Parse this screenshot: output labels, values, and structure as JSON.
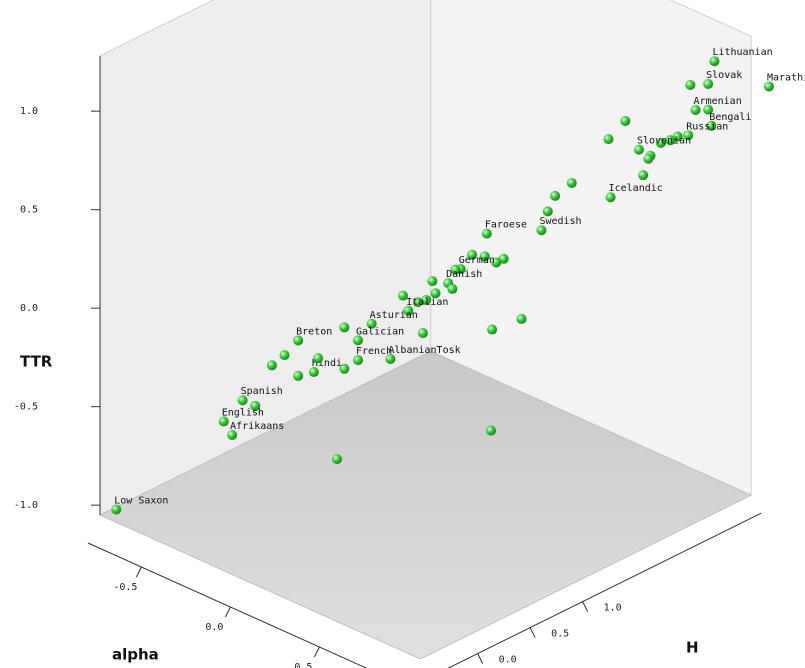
{
  "chart_data": {
    "type": "scatter3d",
    "xlabel": "alpha",
    "ylabel": "H",
    "zlabel": "TTR",
    "color": "#33cc33",
    "xlim": [
      -0.8,
      1.0
    ],
    "ylim": [
      -0.45,
      2.7
    ],
    "zlim": [
      -1.05,
      1.28
    ],
    "xticks": [
      -0.5,
      {
        "value": 0,
        "label": "0.0"
      },
      0.5
    ],
    "yticks": [
      {
        "value": 0,
        "label": "0.0"
      },
      0.5,
      {
        "value": 1,
        "label": "1.0"
      }
    ],
    "zticks": [
      {
        "value": -1,
        "label": "-1.0"
      },
      -0.5,
      {
        "value": 0,
        "label": "0.0"
      },
      0.5,
      {
        "value": 1,
        "label": "1.0"
      }
    ],
    "labels": [
      "Lithuanian",
      "Slovak",
      "Marathi",
      null,
      "Armenian",
      null,
      "Bengali",
      "Russian",
      null,
      null,
      null,
      "Slovenian",
      null,
      null,
      null,
      null,
      null,
      "Icelandic",
      null,
      null,
      null,
      "Swedish",
      "Faroese",
      null,
      null,
      null,
      null,
      null,
      null,
      null,
      "German",
      null,
      "Danish",
      null,
      null,
      null,
      null,
      null,
      "Italian",
      null,
      null,
      "AlbanianTosk",
      "Asturian",
      null,
      "Galician",
      "French",
      null,
      "Hindi",
      null,
      "Breton",
      null,
      null,
      null,
      null,
      "Spanish",
      null,
      "English",
      "Afrikaans",
      "Low Saxon"
    ],
    "x": [
      0.9,
      0.9,
      1.0,
      0.9,
      0.9,
      0.9,
      0.9,
      0.9,
      0.9,
      0.9,
      0.9,
      0.7,
      0.7,
      0.7,
      0.7,
      0.7,
      0.7,
      0.7,
      0.7,
      0.4,
      0.4,
      0.4,
      0.4,
      0.4,
      0.4,
      0.4,
      0.4,
      0.4,
      0.4,
      0.4,
      0.1,
      0.1,
      0.1,
      0.1,
      0.1,
      0.1,
      0.1,
      0.1,
      0.1,
      0.1,
      0.1,
      0.1,
      -0.2,
      -0.2,
      -0.2,
      -0.2,
      -0.2,
      -0.2,
      -0.2,
      -0.2,
      -0.2,
      -0.2,
      -0.2,
      -0.2,
      -0.5,
      -0.5,
      -0.5,
      -0.5,
      -0.75
    ],
    "y": [
      2.52,
      2.46,
      2.87,
      2.29,
      2.34,
      2.46,
      2.49,
      2.27,
      2.17,
      2.1,
      2.01,
      2.14,
      2.25,
      2.23,
      2.18,
      2.01,
      1.85,
      1.87,
      1.5,
      1.85,
      1.78,
      1.72,
      1.2,
      1.06,
      1.18,
      1.36,
      1.29,
      1.53,
      1.25,
      1.24,
      1.46,
      1.41,
      1.34,
      1.38,
      1.22,
      1.19,
      1.13,
      1.05,
      0.96,
      0.91,
      1.1,
      0.79,
      1.12,
      0.86,
      0.99,
      0.99,
      0.86,
      0.57,
      0.61,
      0.42,
      0.42,
      0.29,
      0.17,
      0.79,
      0.4,
      0.52,
      0.22,
      0.3,
      -0.38
    ],
    "z": [
      1.16,
      1.06,
      0.98,
      1.1,
      0.96,
      0.93,
      0.84,
      0.85,
      0.87,
      0.87,
      0.88,
      0.73,
      0.67,
      0.66,
      0.59,
      0.91,
      0.86,
      0.56,
      0.73,
      0.45,
      0.39,
      0.31,
      0.43,
      0.36,
      0.32,
      0.26,
      0.26,
      -0.09,
      -0.07,
      -0.58,
      0.06,
      0.07,
      0.02,
      -0.02,
      0.0,
      0.07,
      -0.01,
      0.0,
      -0.02,
      0.07,
      -0.17,
      -0.22,
      -0.25,
      -0.2,
      -0.3,
      -0.4,
      -0.41,
      -0.35,
      -0.29,
      -0.15,
      -0.33,
      -0.19,
      -0.21,
      -0.85,
      -0.57,
      -0.63,
      -0.63,
      -0.72,
      -1.02
    ]
  }
}
